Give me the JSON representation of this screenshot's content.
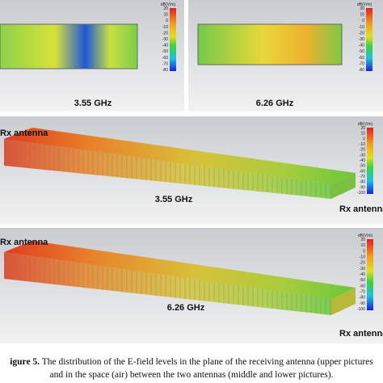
{
  "panels": [
    {
      "label": "3.55 GHz",
      "colorbar": {
        "unit": "dB(V/m)",
        "ticks": [
          "20",
          "10",
          "0",
          "-10",
          "-20",
          "-30",
          "-40",
          "-50",
          "-60",
          "-70",
          "-80"
        ]
      }
    },
    {
      "label": "6.26 GHz",
      "colorbar": {
        "unit": "dB(V/m)",
        "ticks": [
          "20",
          "10",
          "0",
          "-10",
          "-20",
          "-30",
          "-40",
          "-50",
          "-60",
          "-70",
          "-80"
        ]
      }
    },
    {
      "label": "3.55 GHz",
      "antenna_left": "Rx antenna",
      "antenna_right": "Rx antenna",
      "colorbar": {
        "unit": "dB(V/m)",
        "ticks": [
          "20",
          "10",
          "0",
          "-10",
          "-20",
          "-30",
          "-40",
          "-50",
          "-60",
          "-70",
          "-80",
          "-90",
          "-100"
        ]
      }
    },
    {
      "label": "6.26 GHz",
      "antenna_left": "Rx antenna",
      "antenna_right": "Rx antenna",
      "colorbar": {
        "unit": "dB(V/m)",
        "ticks": [
          "20",
          "10",
          "0",
          "-10",
          "-20",
          "-30",
          "-40",
          "-50",
          "-60",
          "-70",
          "-80",
          "-90",
          "-100"
        ]
      }
    }
  ],
  "caption": {
    "label": "igure 5.",
    "line1": "The distribution of the E-field levels in the plane of the receiving antenna (upper pictures",
    "line2": "and in the space (air) between the two antennas (middle and lower pictures)."
  }
}
